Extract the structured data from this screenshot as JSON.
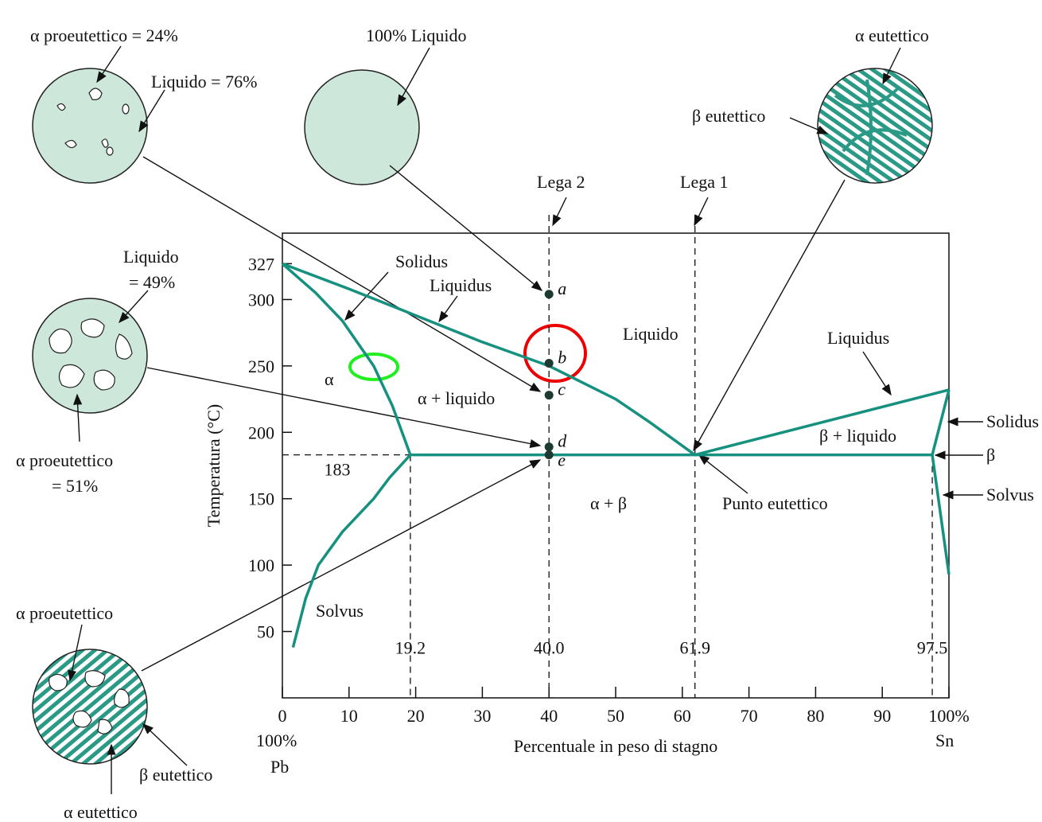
{
  "chart_data": {
    "type": "line",
    "xlabel": "Percentuale in peso di stagno",
    "ylabel": "Temperatura (°C)",
    "xlim": [
      0,
      100
    ],
    "ylim": [
      0,
      350
    ],
    "xticks": [
      0,
      10,
      20,
      30,
      40,
      50,
      60,
      70,
      80,
      90,
      {
        "value": 100,
        "label": "100%"
      }
    ],
    "yticks": [
      50,
      100,
      150,
      200,
      250,
      300,
      327
    ],
    "eutectic_temperature": 183,
    "composition_lines": [
      19.2,
      {
        "value": 40,
        "label": "40.0"
      },
      61.9,
      97.5
    ],
    "series": [
      {
        "name": "Liquidus",
        "color": "#17917f",
        "x": [
          0,
          10,
          20,
          30,
          40,
          50,
          55,
          61.9,
          100
        ],
        "values": [
          327,
          308,
          288,
          268,
          250,
          225,
          208,
          183,
          232
        ]
      },
      {
        "name": "Solidus",
        "color": "#17917f",
        "x": [
          0,
          5,
          9,
          13.7,
          16.5,
          19.2
        ],
        "values": [
          327,
          305,
          284,
          250,
          220,
          183
        ]
      },
      {
        "name": "Solidus",
        "color": "#17917f",
        "x": [
          100,
          97.5
        ],
        "values": [
          232,
          183
        ]
      },
      {
        "name": "Solvus",
        "color": "#17917f",
        "x": [
          19.2,
          16.1,
          13.7,
          9,
          5.4,
          3.5,
          1.6
        ],
        "values": [
          183,
          166,
          150,
          125,
          100,
          75,
          38
        ]
      },
      {
        "name": "Solvus",
        "color": "#17917f",
        "x": [
          97.5,
          100
        ],
        "values": [
          183,
          93
        ]
      },
      {
        "color": "#17917f",
        "x": [
          19.2,
          97.5
        ],
        "values": [
          183,
          183
        ]
      }
    ],
    "points": [
      {
        "label": "a",
        "x": 40,
        "y": 304
      },
      {
        "label": "b",
        "x": 40,
        "y": 252
      },
      {
        "label": "c",
        "x": 40,
        "y": 228
      },
      {
        "label": "d",
        "x": 40,
        "y": 189
      },
      {
        "label": "e",
        "x": 40,
        "y": 183
      }
    ],
    "annotations": [
      "α proeutettico = 24%",
      "Liquido = 76%",
      "100% Liquido",
      "α eutettico",
      "β eutettico",
      "Lega 2",
      "Lega 1",
      "Liquido",
      "α",
      "α + liquido",
      "β + liquido",
      "β",
      "Punto eutettico",
      "α + β",
      "Liquido",
      "= 49%",
      "α proeutettico",
      "= 51%",
      "α proeutettico",
      "β eutettico",
      "α eutettico",
      "100%",
      "Pb",
      "Sn"
    ]
  }
}
